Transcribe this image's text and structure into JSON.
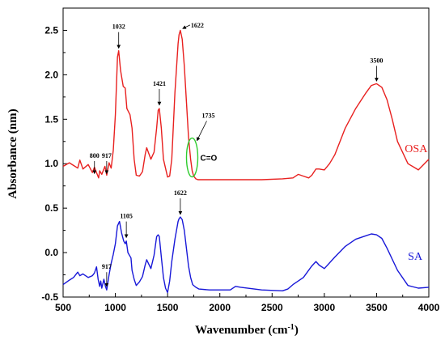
{
  "chart_data": {
    "type": "line",
    "xlabel": "Wavenumber (cm",
    "xlabel_sup": "-1",
    "xlabel_close": ")",
    "ylabel": "Absorbance (nm)",
    "xlim": [
      500,
      4000
    ],
    "ylim": [
      -0.5,
      2.75
    ],
    "xticks": [
      500,
      1000,
      1500,
      2000,
      2500,
      3000,
      3500,
      4000
    ],
    "yticks": [
      -0.5,
      0.0,
      0.5,
      1.0,
      1.5,
      2.0,
      2.5
    ],
    "ytick_labels": [
      "-0.5",
      "0.0",
      "0.5",
      "1.0",
      "1.5",
      "2.0",
      "2.5"
    ],
    "grid": false,
    "colors": {
      "OSA": "#e8201f",
      "SA": "#1818d8",
      "ellipse": "#2ecc2e"
    },
    "series": [
      {
        "name": "OSA",
        "x": [
          500,
          560,
          600,
          640,
          660,
          690,
          740,
          780,
          800,
          820,
          840,
          850,
          870,
          900,
          917,
          940,
          960,
          980,
          1000,
          1020,
          1032,
          1050,
          1075,
          1095,
          1110,
          1140,
          1160,
          1180,
          1200,
          1230,
          1260,
          1285,
          1300,
          1340,
          1370,
          1395,
          1410,
          1421,
          1440,
          1460,
          1500,
          1520,
          1540,
          1570,
          1600,
          1610,
          1622,
          1640,
          1660,
          1680,
          1700,
          1720,
          1735,
          1750,
          1770,
          1790,
          1820,
          1900,
          2000,
          2200,
          2400,
          2600,
          2700,
          2750,
          2800,
          2850,
          2880,
          2920,
          2950,
          3000,
          3050,
          3100,
          3200,
          3300,
          3400,
          3450,
          3500,
          3550,
          3600,
          3650,
          3700,
          3800,
          3900,
          4000
        ],
        "y": [
          0.97,
          1.01,
          0.98,
          0.95,
          1.04,
          0.94,
          0.99,
          0.9,
          0.96,
          0.9,
          0.84,
          0.92,
          0.88,
          0.97,
          0.87,
          1.01,
          0.95,
          1.15,
          1.55,
          2.2,
          2.27,
          2.05,
          1.87,
          1.85,
          1.62,
          1.55,
          1.4,
          1.05,
          0.87,
          0.86,
          0.91,
          1.1,
          1.18,
          1.05,
          1.13,
          1.4,
          1.6,
          1.62,
          1.4,
          1.05,
          0.85,
          0.86,
          1.05,
          1.8,
          2.35,
          2.45,
          2.5,
          2.4,
          2.1,
          1.7,
          1.3,
          1.05,
          0.92,
          0.86,
          0.83,
          0.82,
          0.82,
          0.82,
          0.82,
          0.82,
          0.82,
          0.83,
          0.84,
          0.88,
          0.86,
          0.84,
          0.87,
          0.94,
          0.94,
          0.93,
          1.0,
          1.1,
          1.4,
          1.62,
          1.8,
          1.88,
          1.9,
          1.86,
          1.72,
          1.5,
          1.25,
          1.0,
          0.93,
          1.05
        ]
      },
      {
        "name": "SA",
        "x": [
          500,
          560,
          600,
          640,
          660,
          690,
          740,
          780,
          800,
          820,
          835,
          850,
          860,
          870,
          890,
          905,
          917,
          940,
          960,
          980,
          1000,
          1020,
          1040,
          1060,
          1080,
          1095,
          1105,
          1120,
          1150,
          1160,
          1180,
          1200,
          1230,
          1260,
          1285,
          1300,
          1340,
          1370,
          1395,
          1410,
          1421,
          1440,
          1460,
          1480,
          1500,
          1520,
          1540,
          1570,
          1600,
          1610,
          1622,
          1640,
          1660,
          1680,
          1700,
          1720,
          1740,
          1770,
          1800,
          1900,
          2100,
          2150,
          2200,
          2400,
          2600,
          2650,
          2700,
          2800,
          2880,
          2920,
          2950,
          3000,
          3100,
          3200,
          3300,
          3400,
          3450,
          3500,
          3550,
          3600,
          3700,
          3800,
          3900,
          4000
        ],
        "y": [
          -0.36,
          -0.31,
          -0.28,
          -0.22,
          -0.26,
          -0.24,
          -0.28,
          -0.26,
          -0.23,
          -0.16,
          -0.3,
          -0.38,
          -0.32,
          -0.4,
          -0.3,
          -0.38,
          -0.42,
          -0.25,
          -0.12,
          -0.02,
          0.1,
          0.3,
          0.35,
          0.22,
          0.13,
          0.1,
          0.13,
          0.0,
          -0.06,
          -0.2,
          -0.3,
          -0.37,
          -0.33,
          -0.27,
          -0.14,
          -0.08,
          -0.18,
          -0.03,
          0.18,
          0.2,
          0.18,
          -0.05,
          -0.28,
          -0.4,
          -0.45,
          -0.32,
          -0.1,
          0.15,
          0.35,
          0.38,
          0.4,
          0.37,
          0.25,
          0.05,
          -0.15,
          -0.28,
          -0.36,
          -0.39,
          -0.41,
          -0.42,
          -0.42,
          -0.38,
          -0.39,
          -0.42,
          -0.43,
          -0.41,
          -0.36,
          -0.28,
          -0.15,
          -0.1,
          -0.14,
          -0.18,
          -0.05,
          0.07,
          0.15,
          0.19,
          0.21,
          0.2,
          0.16,
          0.05,
          -0.2,
          -0.37,
          -0.4,
          -0.39
        ]
      }
    ],
    "series_labels": [
      {
        "text": "OSA",
        "x": 3770,
        "y": 1.13
      },
      {
        "text": "SA",
        "x": 3800,
        "y": -0.08
      }
    ],
    "annotations": [
      {
        "text": "800",
        "x": 800,
        "tip_y": 0.89,
        "arrow_from_y": 1.03
      },
      {
        "text": "917",
        "x": 917,
        "tip_y": 0.89,
        "arrow_from_y": 1.03
      },
      {
        "text": "1032",
        "x": 1032,
        "tip_y": 2.3,
        "arrow_from_y": 2.48
      },
      {
        "text": "1421",
        "x": 1421,
        "tip_y": 1.66,
        "arrow_from_y": 1.84
      },
      {
        "text": "1622",
        "x": 1622,
        "tip_y": 2.52,
        "arrow_from_y": 2.56
      },
      {
        "text": "1735",
        "x": 1735,
        "tip_y": 1.26,
        "arrow_from_y": 1.48
      },
      {
        "text": "3500",
        "x": 3500,
        "tip_y": 1.93,
        "arrow_from_y": 2.1
      },
      {
        "text": "917",
        "x": 917,
        "tip_y": -0.38,
        "arrow_from_y": -0.22
      },
      {
        "text": "1105",
        "x": 1105,
        "tip_y": 0.17,
        "arrow_from_y": 0.35
      },
      {
        "text": "1622",
        "x": 1622,
        "tip_y": 0.43,
        "arrow_from_y": 0.61
      }
    ],
    "carbonyl_label": "C=O"
  }
}
